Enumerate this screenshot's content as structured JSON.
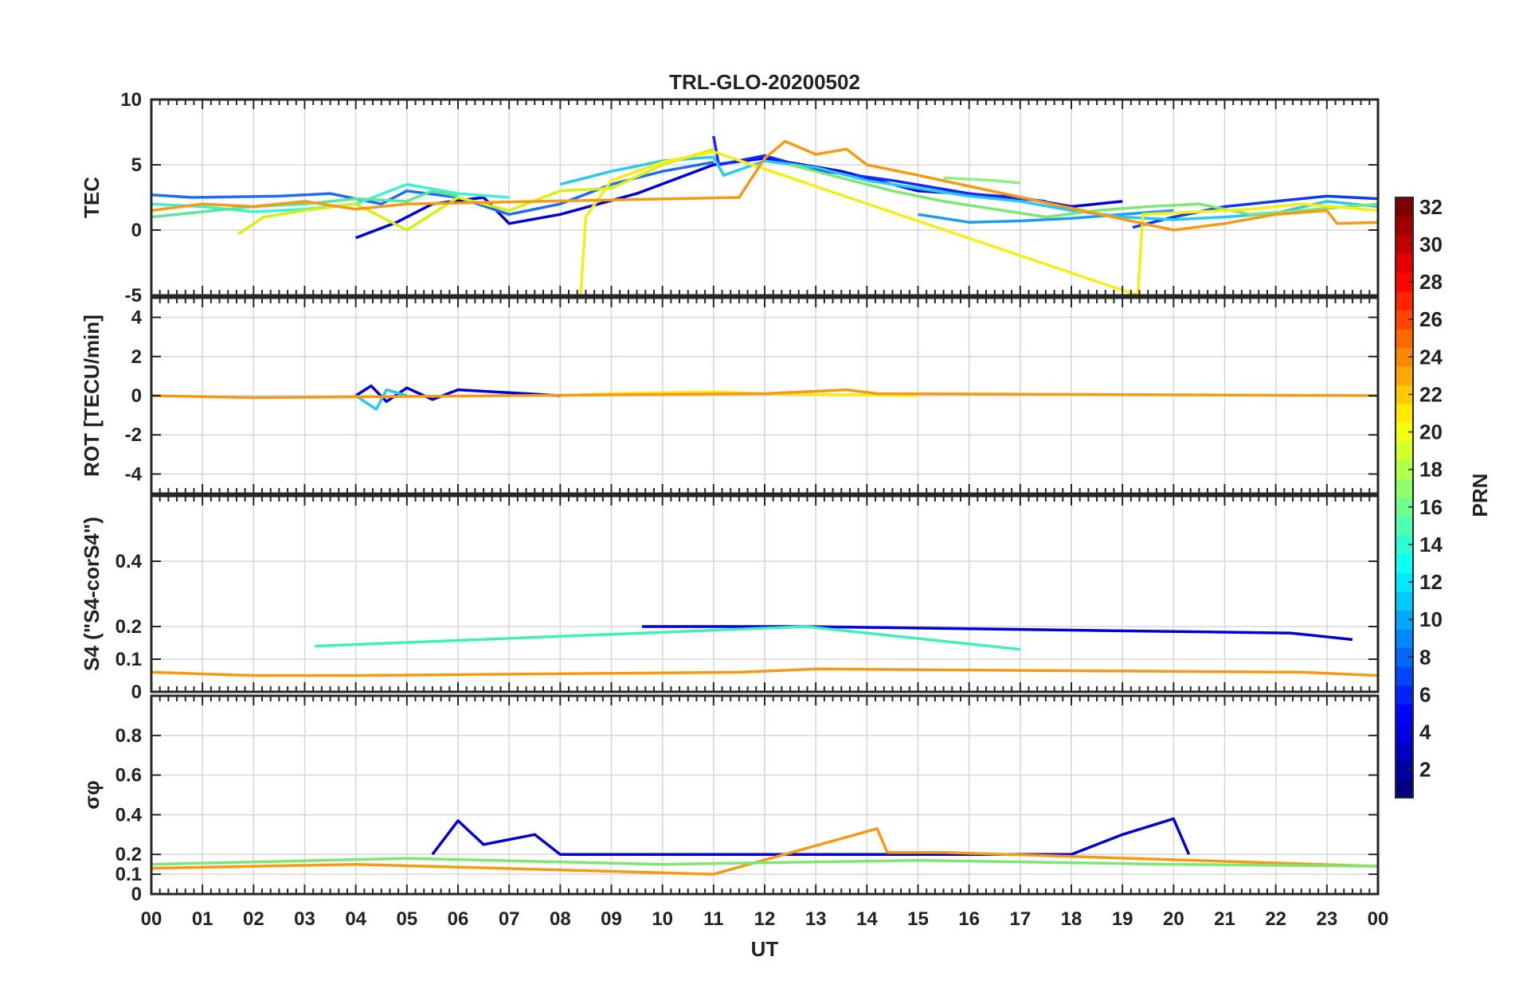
{
  "figure": {
    "title": "TRL-GLO-20200502",
    "xlabel": "UT",
    "colorbar": {
      "label": "PRN",
      "range": [
        1,
        32
      ],
      "ticks": [
        "2",
        "4",
        "6",
        "8",
        "10",
        "12",
        "14",
        "16",
        "18",
        "20",
        "22",
        "24",
        "26",
        "28",
        "30",
        "32"
      ],
      "colormap": "jet"
    },
    "xticks": [
      "00",
      "01",
      "02",
      "03",
      "04",
      "05",
      "06",
      "07",
      "08",
      "09",
      "10",
      "11",
      "12",
      "13",
      "14",
      "15",
      "16",
      "17",
      "18",
      "19",
      "20",
      "21",
      "22",
      "23",
      "00"
    ]
  },
  "chart_data": [
    {
      "type": "line",
      "panel": "TEC",
      "ylabel": "TEC",
      "ylim": [
        -5,
        10
      ],
      "yticks": [
        "-5",
        "0",
        "5",
        "10"
      ],
      "xlim": [
        0,
        24
      ],
      "grid": true,
      "series": [
        {
          "name": "PRN 2",
          "values": [
            [
              4.0,
              -0.6
            ],
            [
              4.8,
              0.6
            ],
            [
              5.5,
              2.0
            ],
            [
              6.5,
              2.5
            ],
            [
              7.0,
              0.5
            ],
            [
              8.0,
              1.2
            ],
            [
              9.5,
              2.8
            ],
            [
              11.0,
              5.0
            ],
            [
              12.0,
              5.5
            ],
            [
              13.5,
              4.5
            ],
            [
              15.0,
              3.0
            ],
            [
              17.0,
              2.5
            ],
            [
              18.0,
              1.8
            ],
            [
              19.0,
              2.2
            ]
          ]
        },
        {
          "name": "PRN 4",
          "values": [
            [
              11.0,
              7.2
            ],
            [
              11.1,
              5.0
            ],
            [
              12.0,
              5.7
            ],
            [
              13.0,
              4.6
            ],
            [
              14.5,
              3.8
            ],
            [
              16.0,
              2.8
            ],
            [
              17.5,
              2.2
            ]
          ]
        },
        {
          "name": "PRN 5",
          "values": [
            [
              19.2,
              0.2
            ],
            [
              20.0,
              1.0
            ],
            [
              21.0,
              1.8
            ],
            [
              22.0,
              2.2
            ],
            [
              23.0,
              2.6
            ],
            [
              24.0,
              2.4
            ]
          ]
        },
        {
          "name": "PRN 7",
          "values": [
            [
              0.0,
              2.7
            ],
            [
              0.8,
              2.5
            ],
            [
              2.5,
              2.6
            ],
            [
              3.5,
              2.8
            ],
            [
              4.5,
              2.0
            ],
            [
              5.0,
              3.0
            ],
            [
              6.0,
              2.5
            ],
            [
              7.0,
              1.2
            ],
            [
              8.0,
              2.0
            ],
            [
              9.0,
              3.5
            ],
            [
              10.0,
              4.5
            ],
            [
              11.0,
              5.2
            ]
          ]
        },
        {
          "name": "PRN 9",
          "values": [
            [
              15.0,
              1.2
            ],
            [
              16.0,
              0.6
            ],
            [
              17.0,
              0.7
            ],
            [
              18.0,
              0.9
            ],
            [
              19.0,
              1.2
            ],
            [
              20.0,
              1.5
            ]
          ]
        },
        {
          "name": "PRN 11",
          "values": [
            [
              8.0,
              3.5
            ],
            [
              9.0,
              4.5
            ],
            [
              10.0,
              5.3
            ],
            [
              11.0,
              5.6
            ],
            [
              11.2,
              4.2
            ],
            [
              12.0,
              5.3
            ],
            [
              13.0,
              4.8
            ],
            [
              14.0,
              3.8
            ],
            [
              15.0,
              3.2
            ],
            [
              16.0,
              2.6
            ],
            [
              17.0,
              2.2
            ],
            [
              18.0,
              1.5
            ],
            [
              19.0,
              1.0
            ],
            [
              20.0,
              0.8
            ],
            [
              21.0,
              1.0
            ],
            [
              22.0,
              1.3
            ],
            [
              23.0,
              2.2
            ],
            [
              24.0,
              1.8
            ]
          ]
        },
        {
          "name": "PRN 13",
          "values": [
            [
              0.0,
              2.0
            ],
            [
              1.0,
              1.8
            ],
            [
              2.0,
              1.4
            ],
            [
              3.0,
              1.6
            ],
            [
              4.0,
              2.0
            ],
            [
              5.0,
              3.5
            ],
            [
              6.0,
              2.8
            ],
            [
              7.0,
              2.5
            ]
          ]
        },
        {
          "name": "PRN 15",
          "values": [
            [
              0.0,
              1.0
            ],
            [
              1.0,
              1.4
            ],
            [
              2.0,
              1.8
            ],
            [
              3.0,
              2.0
            ],
            [
              4.0,
              2.4
            ],
            [
              5.0,
              2.2
            ],
            [
              5.5,
              3.0
            ],
            [
              6.0,
              2.6
            ]
          ]
        },
        {
          "name": "PRN 16",
          "values": [
            [
              12.5,
              5.0
            ],
            [
              13.5,
              4.0
            ],
            [
              14.5,
              3.0
            ],
            [
              15.5,
              2.2
            ],
            [
              16.5,
              1.6
            ],
            [
              17.5,
              1.0
            ],
            [
              18.5,
              1.5
            ],
            [
              19.5,
              1.8
            ],
            [
              20.5,
              2.0
            ],
            [
              21.5,
              1.2
            ],
            [
              22.5,
              1.5
            ],
            [
              24.0,
              2.0
            ]
          ]
        },
        {
          "name": "PRN 17",
          "values": [
            [
              15.5,
              4.0
            ],
            [
              16.5,
              3.8
            ],
            [
              17.0,
              3.6
            ]
          ]
        },
        {
          "name": "PRN 19",
          "values": [
            [
              1.7,
              -0.3
            ],
            [
              2.2,
              1.0
            ],
            [
              3.0,
              1.5
            ],
            [
              4.0,
              2.0
            ],
            [
              5.0,
              0.0
            ],
            [
              6.0,
              2.5
            ],
            [
              7.0,
              1.5
            ],
            [
              8.0,
              3.0
            ],
            [
              9.0,
              3.2
            ],
            [
              10.0,
              5.0
            ],
            [
              11.0,
              6.2
            ]
          ]
        },
        {
          "name": "PRN 20",
          "values": [
            [
              8.4,
              -5.0
            ],
            [
              8.5,
              1.0
            ],
            [
              9.0,
              3.8
            ],
            [
              10.0,
              5.2
            ],
            [
              11.0,
              6.0
            ],
            [
              19.3,
              -5.0
            ],
            [
              19.4,
              1.2
            ],
            [
              20.5,
              1.4
            ],
            [
              21.5,
              1.6
            ],
            [
              22.5,
              2.0
            ],
            [
              24.0,
              1.5
            ]
          ]
        },
        {
          "name": "PRN 23",
          "values": [
            [
              0.0,
              1.5
            ],
            [
              1.0,
              2.0
            ],
            [
              2.0,
              1.8
            ],
            [
              3.0,
              2.2
            ],
            [
              4.0,
              1.6
            ],
            [
              5.0,
              2.0
            ],
            [
              11.5,
              2.5
            ],
            [
              12.0,
              5.5
            ],
            [
              12.4,
              6.8
            ],
            [
              13.0,
              5.8
            ],
            [
              13.6,
              6.2
            ],
            [
              14.0,
              5.0
            ],
            [
              15.0,
              4.2
            ],
            [
              20.0,
              0.0
            ],
            [
              21.0,
              0.5
            ],
            [
              22.0,
              1.2
            ],
            [
              23.0,
              1.5
            ],
            [
              23.2,
              0.5
            ],
            [
              24.0,
              0.6
            ]
          ]
        }
      ]
    },
    {
      "type": "line",
      "panel": "ROT",
      "ylabel": "ROT [TECU/min]",
      "ylim": [
        -5,
        5
      ],
      "yticks": [
        "-4",
        "-2",
        "0",
        "2",
        "4"
      ],
      "xlim": [
        0,
        24
      ],
      "grid": true,
      "series": [
        {
          "name": "PRN 2",
          "values": [
            [
              4.0,
              0.0
            ],
            [
              4.3,
              0.5
            ],
            [
              4.6,
              -0.3
            ],
            [
              5.0,
              0.4
            ],
            [
              5.5,
              -0.2
            ],
            [
              6.0,
              0.3
            ],
            [
              8.0,
              0.0
            ]
          ]
        },
        {
          "name": "PRN 11",
          "values": [
            [
              4.0,
              0.0
            ],
            [
              4.4,
              -0.7
            ],
            [
              4.6,
              0.3
            ],
            [
              5.0,
              0.0
            ]
          ]
        },
        {
          "name": "PRN 20",
          "values": [
            [
              8.0,
              0.0
            ],
            [
              9.0,
              0.1
            ],
            [
              11.0,
              0.2
            ],
            [
              12.0,
              0.1
            ],
            [
              15.0,
              0.0
            ]
          ]
        },
        {
          "name": "PRN 23",
          "values": [
            [
              0.0,
              0.0
            ],
            [
              2.0,
              -0.1
            ],
            [
              12.0,
              0.1
            ],
            [
              13.6,
              0.3
            ],
            [
              14.2,
              0.1
            ],
            [
              24.0,
              0.0
            ]
          ]
        }
      ]
    },
    {
      "type": "line",
      "panel": "S4",
      "ylabel": "S4 (\"S4-corS4\")",
      "ylim": [
        0,
        0.6
      ],
      "yticks": [
        "0",
        "0.1",
        "0.2",
        "0.4"
      ],
      "xlim": [
        0,
        24
      ],
      "grid": true,
      "series": [
        {
          "name": "PRN 2",
          "values": [
            [
              9.6,
              0.2
            ],
            [
              12.8,
              0.2
            ],
            [
              22.3,
              0.18
            ],
            [
              23.5,
              0.16
            ]
          ]
        },
        {
          "name": "PRN 23",
          "values": [
            [
              0.0,
              0.06
            ],
            [
              2.0,
              0.05
            ],
            [
              4.0,
              0.05
            ],
            [
              11.5,
              0.06
            ],
            [
              13.0,
              0.07
            ],
            [
              22.5,
              0.06
            ],
            [
              24.0,
              0.05
            ]
          ]
        },
        {
          "name": "PRN 14",
          "values": [
            [
              3.2,
              0.14
            ],
            [
              12.8,
              0.2
            ],
            [
              17.0,
              0.13
            ]
          ]
        }
      ]
    },
    {
      "type": "line",
      "panel": "sigma_phi",
      "ylabel": "σφ",
      "ylim": [
        0,
        1
      ],
      "yticks": [
        "0",
        "0.1",
        "0.2",
        "0.4",
        "0.6",
        "0.8"
      ],
      "xlim": [
        0,
        24
      ],
      "grid": true,
      "series": [
        {
          "name": "PRN 2",
          "values": [
            [
              5.5,
              0.2
            ],
            [
              6.0,
              0.37
            ],
            [
              6.5,
              0.25
            ],
            [
              7.5,
              0.3
            ],
            [
              8.0,
              0.2
            ],
            [
              18.0,
              0.2
            ],
            [
              19.0,
              0.3
            ],
            [
              20.0,
              0.38
            ],
            [
              20.3,
              0.2
            ]
          ]
        },
        {
          "name": "PRN 23",
          "values": [
            [
              0.0,
              0.13
            ],
            [
              4.0,
              0.15
            ],
            [
              11.0,
              0.1
            ],
            [
              14.2,
              0.33
            ],
            [
              14.4,
              0.21
            ],
            [
              15.5,
              0.21
            ],
            [
              24.0,
              0.14
            ]
          ]
        },
        {
          "name": "PRN 16",
          "values": [
            [
              0.0,
              0.15
            ],
            [
              5.0,
              0.18
            ],
            [
              10.0,
              0.15
            ],
            [
              15.0,
              0.17
            ],
            [
              20.0,
              0.15
            ],
            [
              24.0,
              0.14
            ]
          ]
        }
      ]
    }
  ]
}
